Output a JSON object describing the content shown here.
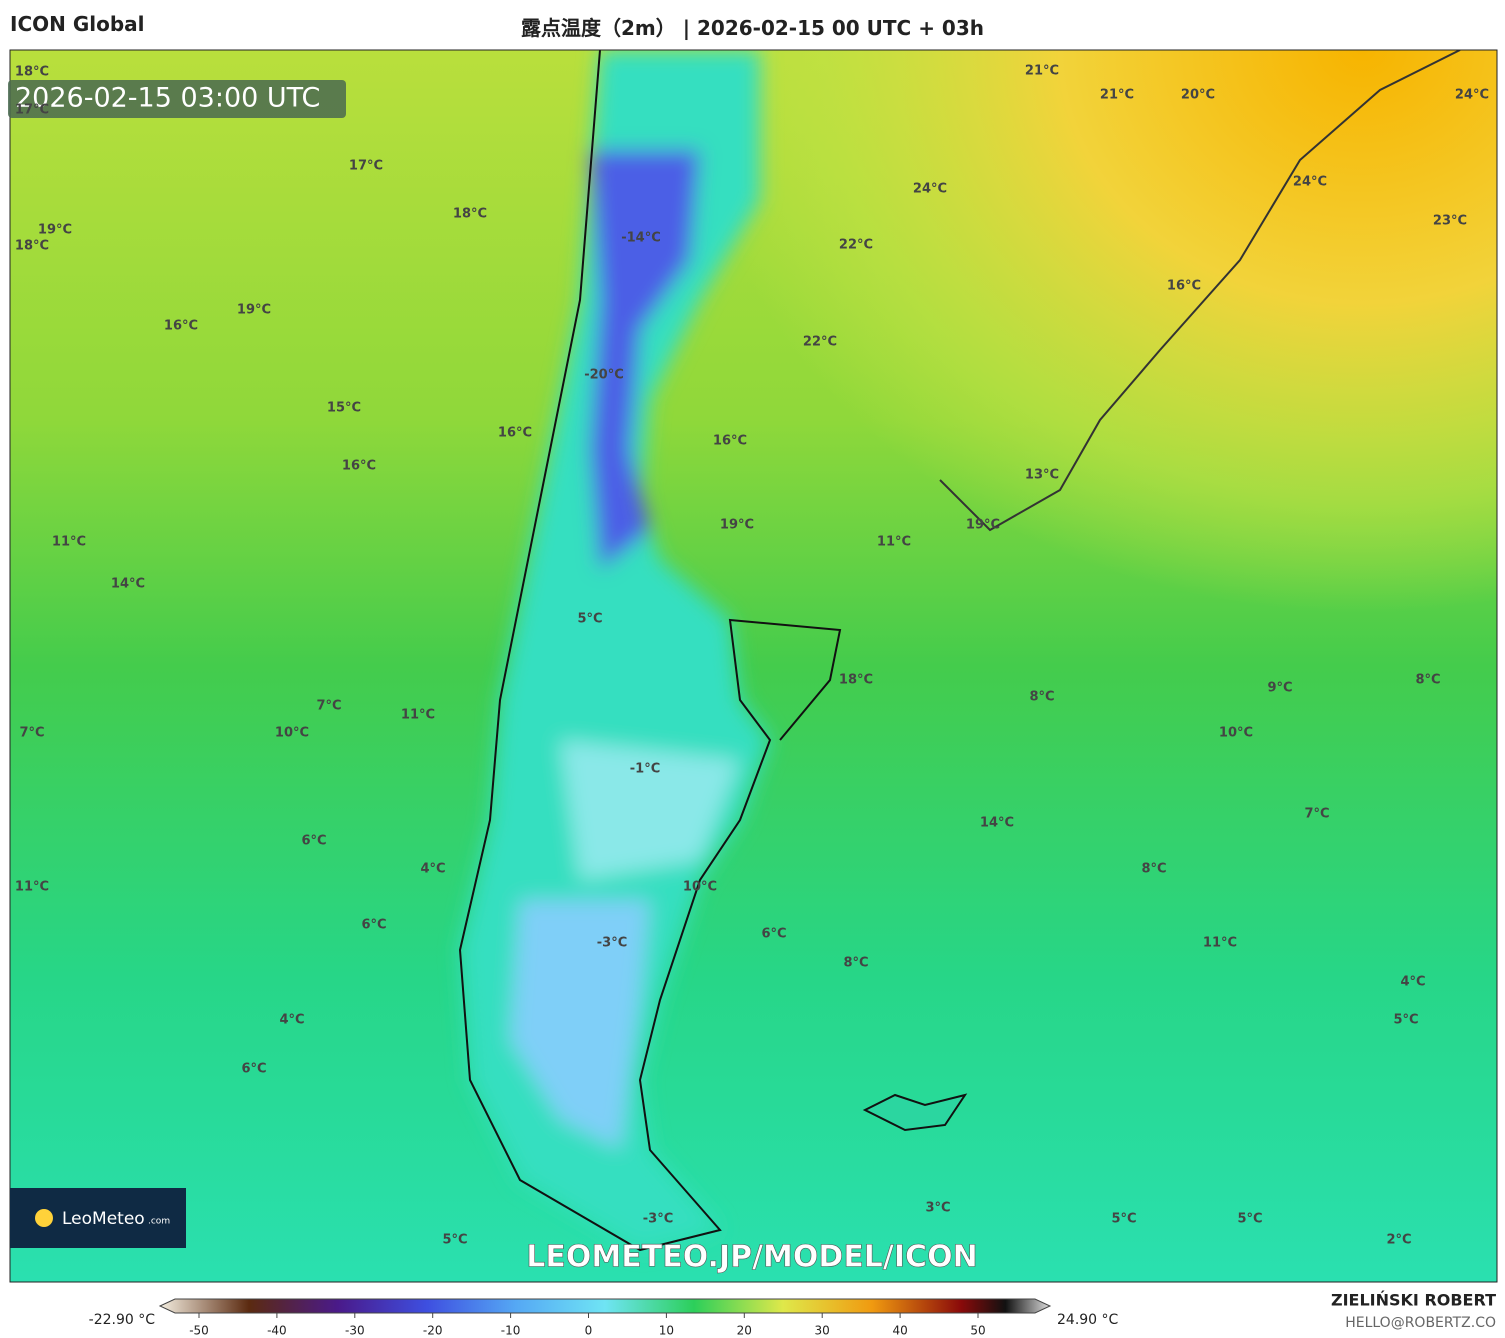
{
  "header": {
    "model": "ICON Global",
    "title": "露点温度（2m） | 2026-02-15 00 UTC + 03h"
  },
  "timestamp": "2026-02-15 03:00 UTC",
  "map": {
    "labels": [
      "18°C",
      "17°C",
      "17°C",
      "18°C",
      "19°C",
      "18°C",
      "19°C",
      "16°C",
      "15°C",
      "16°C",
      "16°C",
      "11°C",
      "14°C",
      "-14°C",
      "-20°C",
      "5°C",
      "7°C",
      "11°C",
      "7°C",
      "10°C",
      "6°C",
      "4°C",
      "11°C",
      "6°C",
      "4°C",
      "6°C",
      "5°C",
      "-1°C",
      "10°C",
      "-3°C",
      "6°C",
      "8°C",
      "-3°C",
      "3°C",
      "21°C",
      "21°C",
      "20°C",
      "24°C",
      "24°C",
      "24°C",
      "23°C",
      "22°C",
      "16°C",
      "22°C",
      "16°C",
      "13°C",
      "19°C",
      "19°C",
      "11°C",
      "18°C",
      "8°C",
      "9°C",
      "8°C",
      "10°C",
      "14°C",
      "7°C",
      "8°C",
      "11°C",
      "4°C",
      "5°C",
      "5°C",
      "5°C",
      "2°C"
    ]
  },
  "watermark": "LEOMETEO.JP/MODEL/ICON",
  "logo": {
    "name": "LeoMeteo",
    "suffix": ".com"
  },
  "colorbar": {
    "min": "-22.90 °C",
    "max": "24.90 °C",
    "ticks": [
      -50,
      -40,
      -30,
      -20,
      -10,
      0,
      10,
      20,
      30,
      40,
      50
    ]
  },
  "footer": {
    "author": "ZIELIŃSKI ROBERT",
    "email": "HELLO@ROBERTZ.CO"
  }
}
